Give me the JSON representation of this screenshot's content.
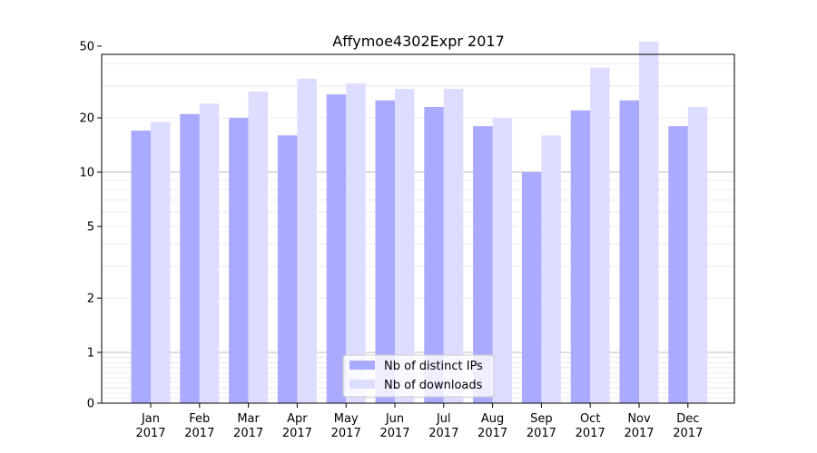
{
  "chart_data": {
    "type": "bar",
    "title": "Affymoe4302Expr 2017",
    "xlabel": "",
    "ylabel": "",
    "y_scale": "symlog",
    "ylim": [
      0,
      110
    ],
    "y_ticks": [
      0,
      1,
      2,
      5,
      10,
      20,
      50,
      100
    ],
    "grid": "horizontal",
    "legend_position": "bottom-center",
    "categories": [
      [
        "Jan",
        "2017"
      ],
      [
        "Feb",
        "2017"
      ],
      [
        "Mar",
        "2017"
      ],
      [
        "Apr",
        "2017"
      ],
      [
        "May",
        "2017"
      ],
      [
        "Jun",
        "2017"
      ],
      [
        "Jul",
        "2017"
      ],
      [
        "Aug",
        "2017"
      ],
      [
        "Sep",
        "2017"
      ],
      [
        "Oct",
        "2017"
      ],
      [
        "Nov",
        "2017"
      ],
      [
        "Dec",
        "2017"
      ]
    ],
    "series": [
      {
        "name": "Nb of distinct IPs",
        "color": "#aaaaff",
        "values": [
          17,
          21,
          20,
          16,
          27,
          25,
          23,
          18,
          10,
          22,
          25,
          18
        ]
      },
      {
        "name": "Nb of downloads",
        "color": "#ddddff",
        "values": [
          19,
          24,
          28,
          33,
          31,
          29,
          29,
          20,
          16,
          38,
          53,
          23
        ]
      }
    ]
  }
}
